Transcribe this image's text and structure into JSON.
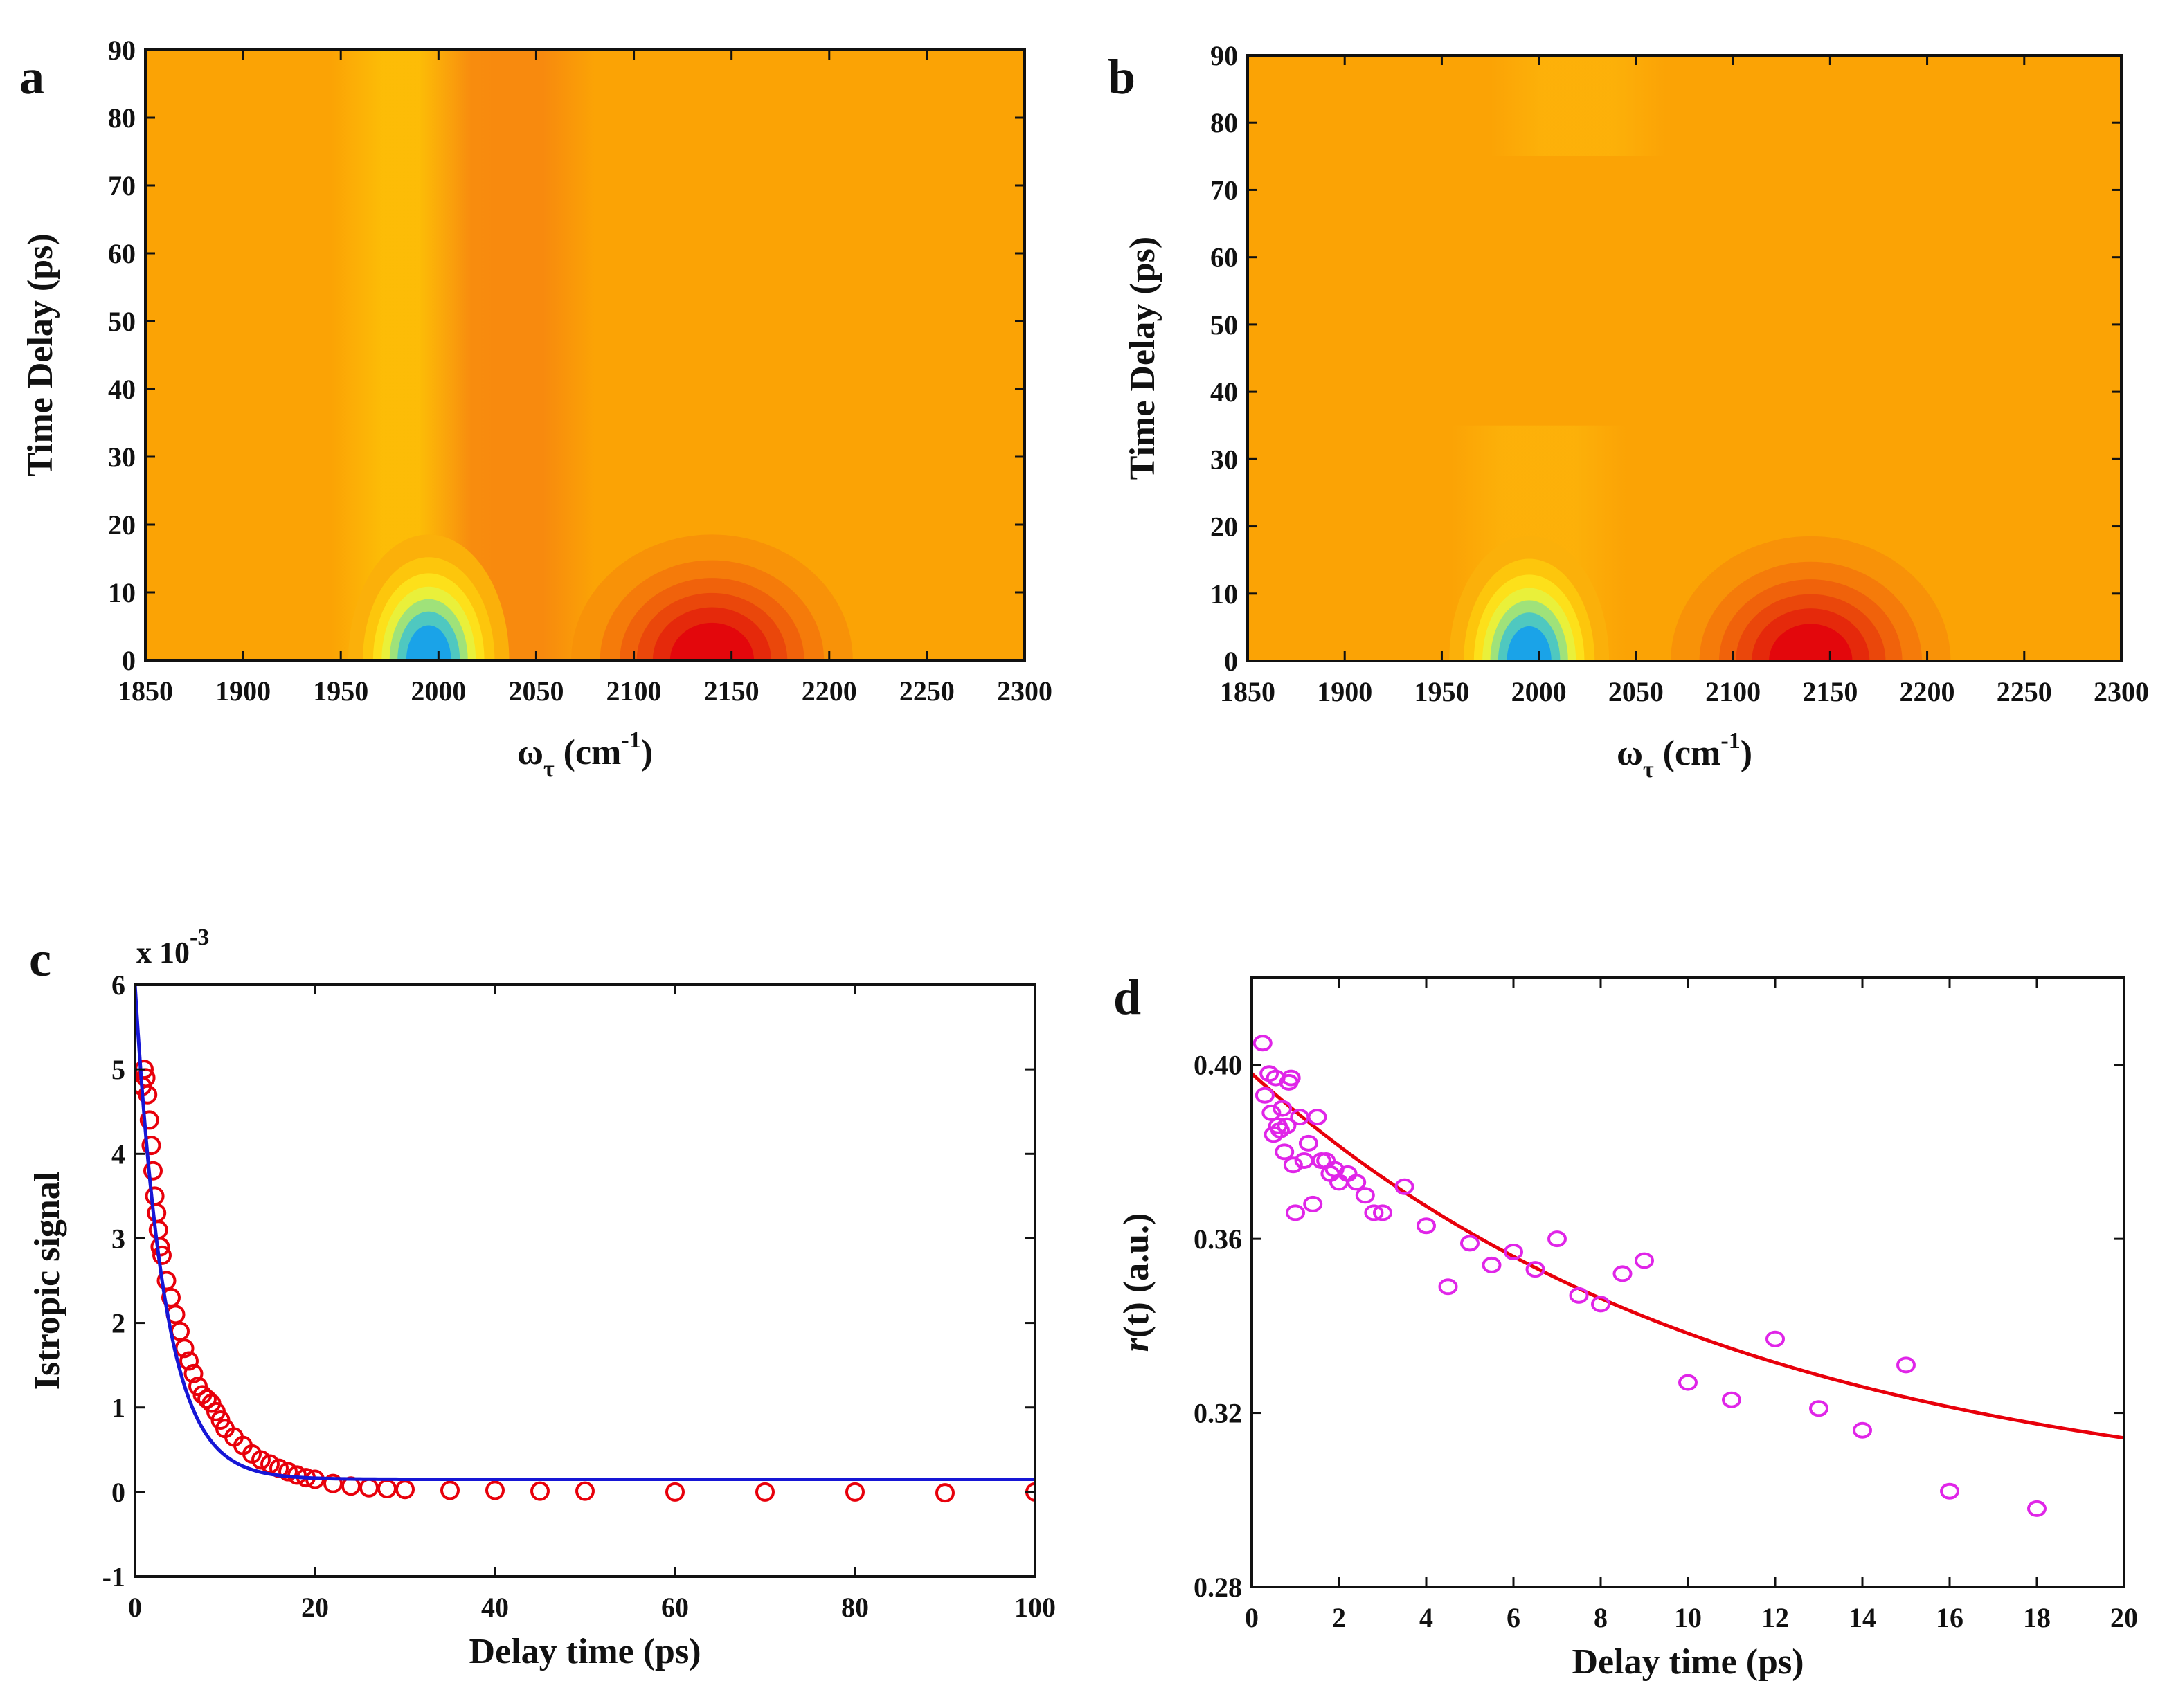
{
  "chart_data": [
    {
      "panel": "a",
      "type": "heatmap",
      "xlabel_main": "ω",
      "xlabel_sub": "τ",
      "xlabel_unit_open": " (cm",
      "xlabel_unit_sup": "-1",
      "xlabel_unit_close": ")",
      "ylabel": "Time Delay (ps)",
      "xlim": [
        1850,
        2300
      ],
      "ylim": [
        0,
        90
      ],
      "xticks": [
        1850,
        1900,
        1950,
        2000,
        2050,
        2100,
        2150,
        2200,
        2250,
        2300
      ],
      "yticks": [
        0,
        10,
        20,
        30,
        40,
        50,
        60,
        70,
        80,
        90
      ],
      "background_color": "#fba305",
      "features": [
        {
          "kind": "positive",
          "center_x": 1995,
          "center_y": 0,
          "sigma_x": 20,
          "sigma_y": 9,
          "peak_color": "#1aa3e8"
        },
        {
          "kind": "positive_band",
          "center_x": 1990,
          "width": 45,
          "y_extent": [
            0,
            90
          ],
          "color": "#fdc107"
        },
        {
          "kind": "negative_band",
          "center_x": 2035,
          "width": 45,
          "y_extent": [
            0,
            90
          ],
          "color": "#f78510"
        },
        {
          "kind": "negative",
          "center_x": 2140,
          "center_y": 0,
          "sigma_x": 35,
          "sigma_y": 9,
          "peak_color": "#e3070c"
        }
      ]
    },
    {
      "panel": "b",
      "type": "heatmap",
      "xlabel_main": "ω",
      "xlabel_sub": "τ",
      "xlabel_unit_open": " (cm",
      "xlabel_unit_sup": "-1",
      "xlabel_unit_close": ")",
      "ylabel": "Time Delay (ps)",
      "xlim": [
        1850,
        2300
      ],
      "ylim": [
        0,
        90
      ],
      "xticks": [
        1850,
        1900,
        1950,
        2000,
        2050,
        2100,
        2150,
        2200,
        2250,
        2300
      ],
      "yticks": [
        0,
        10,
        20,
        30,
        40,
        50,
        60,
        70,
        80,
        90
      ],
      "background_color": "#fba305",
      "features": [
        {
          "kind": "positive",
          "center_x": 1995,
          "center_y": 0,
          "sigma_x": 20,
          "sigma_y": 9,
          "peak_color": "#1aa3e8"
        },
        {
          "kind": "positive_band",
          "center_x": 2000,
          "width": 45,
          "y_extent": [
            0,
            35
          ],
          "color": "#fdb30a"
        },
        {
          "kind": "positive_band",
          "center_x": 2020,
          "width": 45,
          "y_extent": [
            75,
            90
          ],
          "color": "#fdb30a"
        },
        {
          "kind": "negative",
          "center_x": 2140,
          "center_y": 0,
          "sigma_x": 35,
          "sigma_y": 9,
          "peak_color": "#e3070c"
        }
      ]
    },
    {
      "panel": "c",
      "type": "scatter",
      "ylabel": "Istropic signal",
      "xlabel": "Delay time (ps)",
      "scale_label": "x 10",
      "scale_exp": "-3",
      "xlim": [
        0,
        100
      ],
      "ylim": [
        -1,
        6
      ],
      "xticks": [
        0,
        20,
        40,
        60,
        80,
        100
      ],
      "yticks": [
        -1,
        0,
        1,
        2,
        3,
        4,
        5,
        6
      ],
      "series": [
        {
          "name": "data",
          "marker": "circle",
          "color": "#e8000b",
          "x": [
            0.8,
            1.0,
            1.2,
            1.4,
            1.6,
            1.8,
            2.0,
            2.2,
            2.4,
            2.6,
            2.8,
            3.0,
            3.5,
            4.0,
            4.5,
            5.0,
            5.5,
            6.0,
            6.5,
            7.0,
            7.5,
            8.0,
            8.5,
            9.0,
            9.5,
            10.0,
            11.0,
            12.0,
            13.0,
            14.0,
            15.0,
            16.0,
            17.0,
            18.0,
            19.0,
            20.0,
            22.0,
            24.0,
            26.0,
            28.0,
            30.0,
            35.0,
            40.0,
            45.0,
            50.0,
            60.0,
            70.0,
            80.0,
            90.0,
            100.0
          ],
          "y": [
            4.8,
            5.0,
            4.9,
            4.7,
            4.4,
            4.1,
            3.8,
            3.5,
            3.3,
            3.1,
            2.9,
            2.8,
            2.5,
            2.3,
            2.1,
            1.9,
            1.7,
            1.55,
            1.4,
            1.25,
            1.15,
            1.1,
            1.05,
            0.95,
            0.85,
            0.75,
            0.65,
            0.55,
            0.45,
            0.38,
            0.33,
            0.28,
            0.24,
            0.2,
            0.17,
            0.15,
            0.1,
            0.07,
            0.05,
            0.04,
            0.03,
            0.02,
            0.02,
            0.01,
            0.01,
            0.0,
            0.0,
            0.0,
            -0.01,
            0.0
          ]
        },
        {
          "name": "fit",
          "kind": "line",
          "color": "#1616d6",
          "model": "exp_decay",
          "A": 5.85,
          "tau": 3.3,
          "offset": 0.15,
          "x_range": [
            0,
            100
          ]
        }
      ]
    },
    {
      "panel": "d",
      "type": "scatter",
      "ylabel_italic": "r",
      "ylabel_rest": "(t) (a.u.)",
      "xlabel": "Delay time (ps)",
      "xlim": [
        0,
        20
      ],
      "ylim": [
        0.28,
        0.42
      ],
      "xticks": [
        0,
        2,
        4,
        6,
        8,
        10,
        12,
        14,
        16,
        18,
        20
      ],
      "yticks": [
        0.28,
        0.32,
        0.36,
        0.4
      ],
      "ytick_labels": [
        "0.28",
        "0.32",
        "0.36",
        "0.40"
      ],
      "series": [
        {
          "name": "data",
          "marker": "circle",
          "color": "#e025e8",
          "x": [
            0.25,
            0.3,
            0.4,
            0.45,
            0.5,
            0.55,
            0.6,
            0.65,
            0.7,
            0.75,
            0.8,
            0.85,
            0.9,
            0.95,
            1.0,
            1.1,
            1.2,
            1.3,
            1.4,
            1.5,
            1.6,
            1.7,
            1.8,
            1.9,
            2.0,
            2.2,
            2.4,
            2.6,
            2.8,
            3.0,
            3.5,
            4.0,
            4.5,
            5.0,
            5.5,
            6.0,
            6.5,
            7.0,
            7.5,
            8.0,
            8.5,
            9.0,
            10.0,
            11.0,
            12.0,
            13.0,
            14.0,
            15.0,
            16.0,
            18.0
          ],
          "y": [
            0.405,
            0.393,
            0.398,
            0.389,
            0.384,
            0.397,
            0.386,
            0.385,
            0.39,
            0.38,
            0.386,
            0.396,
            0.397,
            0.377,
            0.366,
            0.388,
            0.378,
            0.382,
            0.368,
            0.388,
            0.378,
            0.378,
            0.375,
            0.376,
            0.373,
            0.375,
            0.373,
            0.37,
            0.366,
            0.366,
            0.372,
            0.363,
            0.349,
            0.359,
            0.354,
            0.357,
            0.353,
            0.36,
            0.347,
            0.345,
            0.352,
            0.355,
            0.327,
            0.323,
            0.337,
            0.321,
            0.316,
            0.331,
            0.302,
            0.298
          ]
        },
        {
          "name": "fit",
          "kind": "line",
          "color": "#e8000b",
          "model": "exp_decay",
          "A": 0.1,
          "tau": 11.0,
          "offset": 0.298,
          "x_range": [
            0,
            20
          ]
        }
      ]
    }
  ]
}
